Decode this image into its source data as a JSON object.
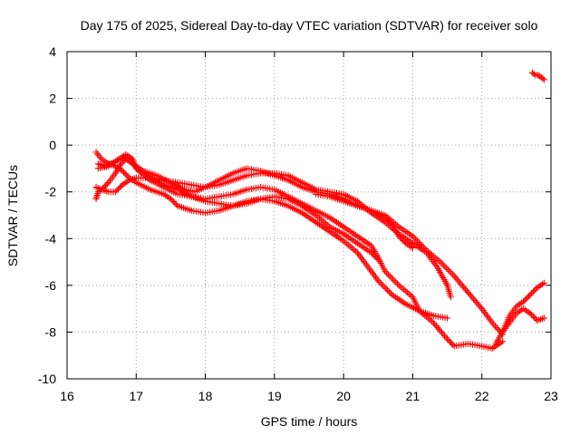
{
  "chart_data": {
    "type": "scatter",
    "title": "Day 175 of 2025, Sidereal Day-to-day VTEC variation (SDTVAR) for receiver solo",
    "xlabel": "GPS time / hours",
    "ylabel": "SDTVAR / TECUs",
    "xlim": [
      16,
      23
    ],
    "ylim": [
      -10,
      4
    ],
    "xticks": [
      16,
      17,
      18,
      19,
      20,
      21,
      22,
      23
    ],
    "yticks": [
      -10,
      -8,
      -6,
      -4,
      -2,
      0,
      2,
      4
    ],
    "x_tick_labels": [
      "16",
      "17",
      "18",
      "19",
      "20",
      "21",
      "22",
      "23"
    ],
    "y_tick_labels": [
      "-10",
      "-8",
      "-6",
      "-4",
      "-2",
      "0",
      "2",
      "4"
    ],
    "grid": true,
    "marker": "+",
    "color": "#ff0000",
    "series": [
      {
        "name": "track-1",
        "points": [
          [
            16.42,
            -2.3
          ],
          [
            16.45,
            -2.0
          ],
          [
            16.5,
            -1.9
          ],
          [
            16.6,
            -1.6
          ],
          [
            16.7,
            -1.2
          ],
          [
            16.78,
            -0.8
          ],
          [
            16.85,
            -0.6
          ],
          [
            16.95,
            -0.8
          ],
          [
            17.1,
            -1.1
          ],
          [
            17.3,
            -1.3
          ],
          [
            17.5,
            -1.6
          ],
          [
            17.7,
            -1.9
          ],
          [
            17.85,
            -2.0
          ],
          [
            18.0,
            -1.8
          ],
          [
            18.2,
            -1.5
          ],
          [
            18.4,
            -1.2
          ],
          [
            18.6,
            -1.0
          ],
          [
            18.8,
            -1.1
          ],
          [
            19.0,
            -1.3
          ],
          [
            19.2,
            -1.5
          ],
          [
            19.4,
            -1.8
          ],
          [
            19.6,
            -2.0
          ],
          [
            19.8,
            -2.1
          ],
          [
            20.0,
            -2.3
          ],
          [
            20.2,
            -2.6
          ],
          [
            20.4,
            -2.8
          ],
          [
            20.6,
            -3.0
          ],
          [
            20.8,
            -3.5
          ],
          [
            21.0,
            -3.9
          ],
          [
            21.2,
            -4.5
          ],
          [
            21.4,
            -5.0
          ],
          [
            21.6,
            -5.6
          ],
          [
            21.8,
            -6.3
          ],
          [
            22.0,
            -7.0
          ],
          [
            22.15,
            -7.6
          ],
          [
            22.3,
            -8.1
          ]
        ]
      },
      {
        "name": "track-2",
        "points": [
          [
            16.42,
            -1.8
          ],
          [
            16.5,
            -1.9
          ],
          [
            16.6,
            -2.0
          ],
          [
            16.7,
            -2.0
          ],
          [
            16.8,
            -1.7
          ],
          [
            16.9,
            -1.5
          ],
          [
            17.0,
            -1.4
          ],
          [
            17.2,
            -1.4
          ],
          [
            17.4,
            -1.5
          ],
          [
            17.6,
            -1.6
          ],
          [
            17.8,
            -1.7
          ],
          [
            18.0,
            -1.8
          ],
          [
            18.2,
            -1.7
          ],
          [
            18.4,
            -1.5
          ],
          [
            18.6,
            -1.3
          ],
          [
            18.8,
            -1.2
          ],
          [
            19.0,
            -1.2
          ],
          [
            19.2,
            -1.3
          ],
          [
            19.4,
            -1.6
          ],
          [
            19.6,
            -1.9
          ],
          [
            19.8,
            -2.0
          ],
          [
            20.0,
            -2.1
          ],
          [
            20.2,
            -2.4
          ],
          [
            20.4,
            -2.9
          ],
          [
            20.6,
            -3.3
          ],
          [
            20.8,
            -3.8
          ],
          [
            21.0,
            -4.2
          ],
          [
            21.2,
            -4.6
          ],
          [
            21.35,
            -5.2
          ],
          [
            21.5,
            -6.0
          ],
          [
            21.55,
            -6.5
          ]
        ]
      },
      {
        "name": "track-3",
        "points": [
          [
            16.42,
            -0.3
          ],
          [
            16.5,
            -0.6
          ],
          [
            16.6,
            -0.8
          ],
          [
            16.7,
            -0.9
          ],
          [
            16.8,
            -1.1
          ],
          [
            16.9,
            -1.4
          ],
          [
            17.0,
            -1.6
          ],
          [
            17.2,
            -1.9
          ],
          [
            17.4,
            -2.1
          ],
          [
            17.5,
            -2.3
          ],
          [
            17.6,
            -2.6
          ],
          [
            17.8,
            -2.8
          ],
          [
            18.0,
            -2.9
          ],
          [
            18.2,
            -2.8
          ],
          [
            18.4,
            -2.6
          ],
          [
            18.6,
            -2.4
          ],
          [
            18.8,
            -2.3
          ],
          [
            19.0,
            -2.4
          ],
          [
            19.2,
            -2.6
          ],
          [
            19.4,
            -2.9
          ],
          [
            19.6,
            -3.3
          ],
          [
            19.8,
            -3.7
          ],
          [
            20.0,
            -4.1
          ],
          [
            20.2,
            -4.6
          ],
          [
            20.35,
            -5.2
          ],
          [
            20.5,
            -5.8
          ],
          [
            20.7,
            -6.4
          ],
          [
            20.9,
            -6.8
          ],
          [
            21.1,
            -7.1
          ],
          [
            21.3,
            -7.3
          ],
          [
            21.5,
            -7.4
          ]
        ]
      },
      {
        "name": "track-4",
        "points": [
          [
            16.45,
            -0.8
          ],
          [
            16.55,
            -0.9
          ],
          [
            16.7,
            -0.7
          ],
          [
            16.85,
            -0.4
          ],
          [
            16.95,
            -0.6
          ],
          [
            17.0,
            -1.0
          ],
          [
            17.2,
            -1.4
          ],
          [
            17.4,
            -1.7
          ],
          [
            17.6,
            -1.9
          ],
          [
            17.8,
            -2.2
          ],
          [
            18.0,
            -2.3
          ],
          [
            18.2,
            -2.2
          ],
          [
            18.4,
            -2.1
          ],
          [
            18.6,
            -1.9
          ],
          [
            18.8,
            -1.8
          ],
          [
            19.0,
            -1.9
          ],
          [
            19.2,
            -2.2
          ],
          [
            19.4,
            -2.5
          ],
          [
            19.6,
            -2.8
          ],
          [
            19.8,
            -3.1
          ],
          [
            20.0,
            -3.5
          ],
          [
            20.2,
            -3.9
          ],
          [
            20.4,
            -4.3
          ],
          [
            20.5,
            -4.8
          ],
          [
            20.6,
            -5.4
          ],
          [
            20.8,
            -6.0
          ],
          [
            21.0,
            -6.5
          ],
          [
            21.1,
            -7.1
          ],
          [
            21.3,
            -7.6
          ],
          [
            21.5,
            -8.3
          ],
          [
            21.6,
            -8.6
          ],
          [
            21.8,
            -8.5
          ],
          [
            22.0,
            -8.6
          ],
          [
            22.15,
            -8.7
          ],
          [
            22.3,
            -8.4
          ]
        ]
      },
      {
        "name": "track-5",
        "points": [
          [
            16.45,
            -1.0
          ],
          [
            16.6,
            -0.9
          ],
          [
            16.75,
            -0.6
          ],
          [
            16.9,
            -0.5
          ],
          [
            17.0,
            -1.0
          ],
          [
            17.2,
            -1.5
          ],
          [
            17.4,
            -1.8
          ],
          [
            17.6,
            -2.1
          ],
          [
            17.8,
            -2.2
          ],
          [
            18.0,
            -2.4
          ],
          [
            18.2,
            -2.5
          ],
          [
            18.4,
            -2.6
          ],
          [
            18.6,
            -2.5
          ],
          [
            18.8,
            -2.3
          ],
          [
            19.0,
            -2.2
          ],
          [
            19.2,
            -2.3
          ],
          [
            19.4,
            -2.6
          ],
          [
            19.6,
            -3.0
          ],
          [
            19.8,
            -3.5
          ],
          [
            20.0,
            -3.8
          ],
          [
            20.2,
            -4.2
          ],
          [
            20.4,
            -4.6
          ],
          [
            20.5,
            -4.9
          ]
        ]
      },
      {
        "name": "track-6",
        "points": [
          [
            19.6,
            -2.1
          ],
          [
            19.8,
            -2.2
          ],
          [
            20.0,
            -2.4
          ],
          [
            20.2,
            -2.6
          ],
          [
            20.4,
            -2.8
          ],
          [
            20.6,
            -3.1
          ],
          [
            20.7,
            -3.4
          ],
          [
            20.8,
            -3.9
          ],
          [
            20.9,
            -4.2
          ],
          [
            21.0,
            -4.4
          ]
        ]
      },
      {
        "name": "track-7",
        "points": [
          [
            22.2,
            -8.5
          ],
          [
            22.3,
            -8.0
          ],
          [
            22.4,
            -7.3
          ],
          [
            22.5,
            -6.9
          ],
          [
            22.6,
            -6.7
          ],
          [
            22.7,
            -6.4
          ],
          [
            22.8,
            -6.1
          ],
          [
            22.9,
            -5.9
          ]
        ]
      },
      {
        "name": "track-8",
        "points": [
          [
            22.3,
            -8.0
          ],
          [
            22.4,
            -7.6
          ],
          [
            22.5,
            -7.2
          ],
          [
            22.6,
            -7.0
          ],
          [
            22.7,
            -7.2
          ],
          [
            22.8,
            -7.5
          ],
          [
            22.9,
            -7.4
          ]
        ]
      },
      {
        "name": "track-9",
        "points": [
          [
            22.73,
            3.1
          ],
          [
            22.77,
            3.0
          ],
          [
            22.8,
            3.0
          ],
          [
            22.84,
            2.95
          ],
          [
            22.88,
            2.85
          ],
          [
            22.9,
            2.8
          ]
        ]
      }
    ]
  }
}
